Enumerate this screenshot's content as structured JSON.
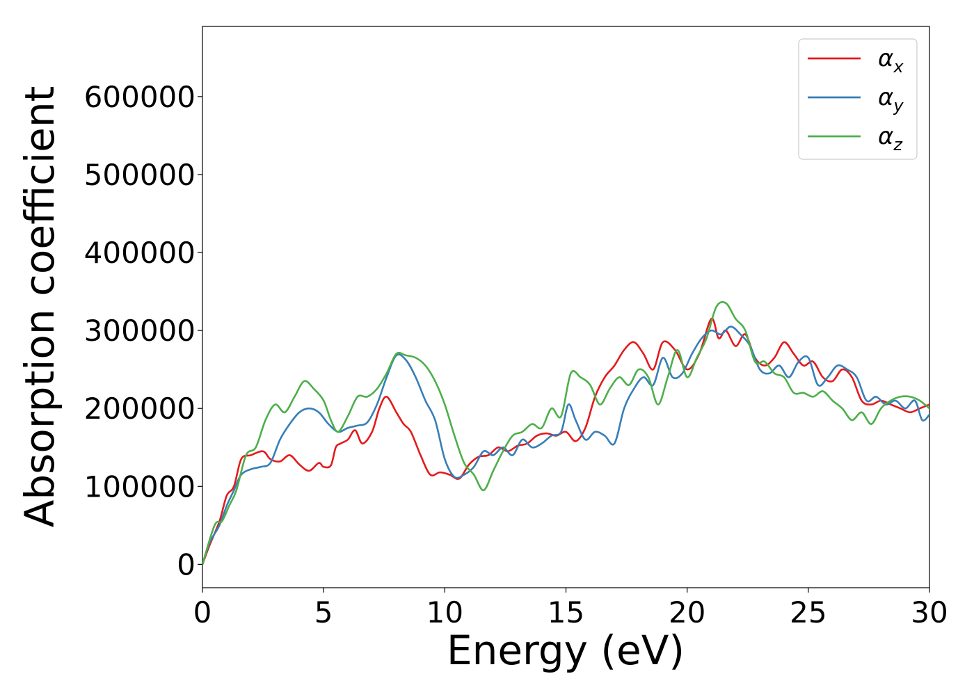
{
  "chart_data": {
    "type": "line",
    "xlabel": "Energy (eV)",
    "ylabel": "Absorption coefficient",
    "xlim": [
      0,
      30
    ],
    "ylim": [
      -30000,
      690000
    ],
    "xticks": [
      0,
      5,
      10,
      15,
      20,
      25,
      30
    ],
    "xtick_labels": [
      "0",
      "5",
      "10",
      "15",
      "20",
      "25",
      "30"
    ],
    "yticks": [
      0,
      100000,
      200000,
      300000,
      400000,
      500000,
      600000
    ],
    "ytick_labels": [
      "0",
      "100000",
      "200000",
      "300000",
      "400000",
      "500000",
      "600000"
    ],
    "grid": false,
    "legend_position": "top-right",
    "series": [
      {
        "name": "αx",
        "symbol": "α",
        "subscript": "x",
        "color": "#e41a1c",
        "x": [
          0,
          0.3,
          0.7,
          1.0,
          1.3,
          1.6,
          2.0,
          2.5,
          2.8,
          3.2,
          3.6,
          4.0,
          4.4,
          4.8,
          5.0,
          5.3,
          5.5,
          5.7,
          6.0,
          6.3,
          6.6,
          7.0,
          7.3,
          7.6,
          8.0,
          8.3,
          8.6,
          9.0,
          9.4,
          9.8,
          10.2,
          10.6,
          11.0,
          11.4,
          11.8,
          12.2,
          12.6,
          13.0,
          13.4,
          13.8,
          14.2,
          14.6,
          15.0,
          15.4,
          15.8,
          16.2,
          16.6,
          17.0,
          17.4,
          17.8,
          18.2,
          18.6,
          19.0,
          19.5,
          20.0,
          20.5,
          21.0,
          21.3,
          21.6,
          22.0,
          22.4,
          22.8,
          23.2,
          23.6,
          24.0,
          24.4,
          24.8,
          25.2,
          25.6,
          26.0,
          26.4,
          26.8,
          27.2,
          27.6,
          28.0,
          28.4,
          28.8,
          29.2,
          29.6,
          30.0
        ],
        "y": [
          0,
          25000,
          55000,
          88000,
          100000,
          135000,
          140000,
          145000,
          135000,
          132000,
          140000,
          128000,
          120000,
          130000,
          125000,
          127000,
          150000,
          155000,
          160000,
          172000,
          155000,
          170000,
          200000,
          215000,
          195000,
          180000,
          170000,
          140000,
          115000,
          118000,
          115000,
          110000,
          128000,
          138000,
          140000,
          150000,
          145000,
          152000,
          155000,
          165000,
          168000,
          165000,
          170000,
          158000,
          175000,
          215000,
          240000,
          255000,
          275000,
          285000,
          270000,
          250000,
          285000,
          275000,
          250000,
          270000,
          315000,
          290000,
          300000,
          280000,
          295000,
          265000,
          255000,
          265000,
          285000,
          270000,
          255000,
          260000,
          240000,
          235000,
          250000,
          240000,
          210000,
          205000,
          210000,
          205000,
          200000,
          195000,
          200000,
          205000
        ]
      },
      {
        "name": "αy",
        "symbol": "α",
        "subscript": "y",
        "color": "#377eb8",
        "x": [
          0,
          0.3,
          0.7,
          1.0,
          1.3,
          1.6,
          2.0,
          2.4,
          2.8,
          3.2,
          3.6,
          4.0,
          4.4,
          4.8,
          5.2,
          5.6,
          6.0,
          6.4,
          6.8,
          7.2,
          7.6,
          8.0,
          8.4,
          8.8,
          9.2,
          9.6,
          10.0,
          10.4,
          10.8,
          11.2,
          11.6,
          12.0,
          12.4,
          12.8,
          13.2,
          13.6,
          14.0,
          14.4,
          14.8,
          15.1,
          15.4,
          15.8,
          16.2,
          16.6,
          17.0,
          17.4,
          17.8,
          18.2,
          18.6,
          19.0,
          19.4,
          19.8,
          20.2,
          20.6,
          21.0,
          21.4,
          21.8,
          22.2,
          22.6,
          23.0,
          23.4,
          23.8,
          24.2,
          24.6,
          25.0,
          25.4,
          25.8,
          26.2,
          26.6,
          27.0,
          27.4,
          27.8,
          28.2,
          28.6,
          29.0,
          29.4,
          29.7,
          30.0
        ],
        "y": [
          0,
          28000,
          50000,
          75000,
          95000,
          115000,
          122000,
          125000,
          130000,
          160000,
          180000,
          195000,
          200000,
          195000,
          180000,
          170000,
          175000,
          178000,
          182000,
          205000,
          240000,
          268000,
          262000,
          240000,
          210000,
          185000,
          135000,
          112000,
          115000,
          125000,
          145000,
          140000,
          150000,
          140000,
          160000,
          150000,
          155000,
          165000,
          170000,
          205000,
          185000,
          160000,
          170000,
          165000,
          155000,
          200000,
          225000,
          240000,
          230000,
          265000,
          240000,
          245000,
          270000,
          290000,
          300000,
          295000,
          305000,
          295000,
          280000,
          250000,
          245000,
          255000,
          240000,
          260000,
          265000,
          230000,
          240000,
          255000,
          250000,
          240000,
          210000,
          215000,
          205000,
          210000,
          200000,
          210000,
          185000,
          192000
        ]
      },
      {
        "name": "αz",
        "symbol": "α",
        "subscript": "z",
        "color": "#4daf4a",
        "x": [
          0,
          0.5,
          0.8,
          1.1,
          1.4,
          1.8,
          2.2,
          2.6,
          3.0,
          3.4,
          3.8,
          4.2,
          4.6,
          5.0,
          5.3,
          5.6,
          6.0,
          6.4,
          6.8,
          7.2,
          7.6,
          8.0,
          8.4,
          8.8,
          9.2,
          9.6,
          10.0,
          10.4,
          10.8,
          11.2,
          11.6,
          12.0,
          12.4,
          12.8,
          13.2,
          13.6,
          14.0,
          14.4,
          14.8,
          15.2,
          15.6,
          16.0,
          16.4,
          16.8,
          17.2,
          17.6,
          18.0,
          18.4,
          18.8,
          19.2,
          19.6,
          20.0,
          20.4,
          20.8,
          21.2,
          21.6,
          22.0,
          22.4,
          22.8,
          23.2,
          23.6,
          24.0,
          24.4,
          24.8,
          25.2,
          25.6,
          26.0,
          26.4,
          26.8,
          27.2,
          27.6,
          28.0,
          28.4,
          28.8,
          29.2,
          29.6,
          30.0
        ],
        "y": [
          0,
          50000,
          55000,
          75000,
          95000,
          140000,
          150000,
          185000,
          205000,
          195000,
          215000,
          235000,
          225000,
          210000,
          185000,
          170000,
          190000,
          215000,
          215000,
          225000,
          245000,
          270000,
          268000,
          265000,
          255000,
          235000,
          205000,
          165000,
          130000,
          115000,
          95000,
          120000,
          145000,
          165000,
          170000,
          180000,
          175000,
          200000,
          190000,
          245000,
          240000,
          230000,
          205000,
          225000,
          240000,
          230000,
          250000,
          240000,
          205000,
          240000,
          275000,
          240000,
          265000,
          290000,
          330000,
          335000,
          315000,
          300000,
          260000,
          260000,
          245000,
          240000,
          220000,
          220000,
          215000,
          222000,
          210000,
          200000,
          185000,
          195000,
          180000,
          200000,
          210000,
          215000,
          215000,
          210000,
          200000
        ]
      }
    ]
  }
}
